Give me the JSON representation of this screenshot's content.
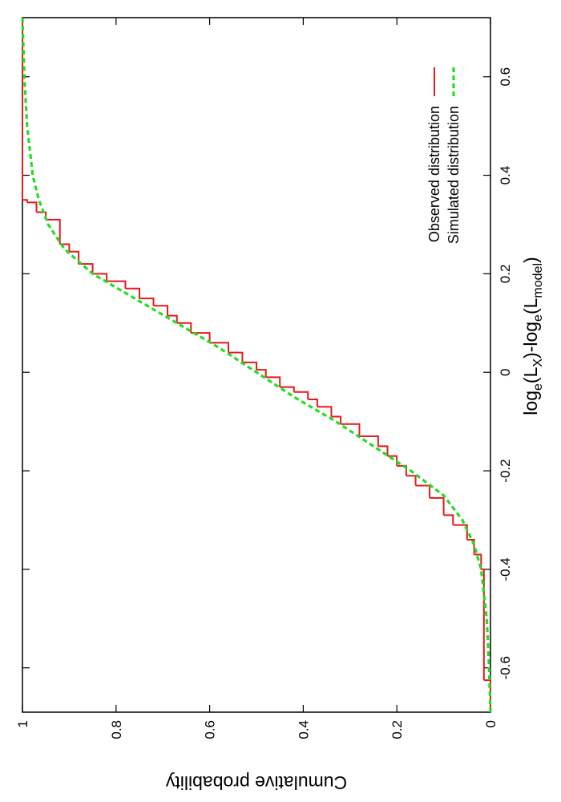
{
  "chart_data": {
    "type": "line",
    "ylabel": "Cumulative probability",
    "xlabel_parts": [
      "log",
      "e",
      "(L",
      "X",
      ")-log",
      "e",
      "(L",
      "model",
      ")"
    ],
    "xlim": [
      -0.69,
      0.72
    ],
    "ylim": [
      0,
      1
    ],
    "xticks": [
      -0.6,
      -0.4,
      -0.2,
      0,
      0.2,
      0.4,
      0.6
    ],
    "yticks": [
      0,
      0.2,
      0.4,
      0.6,
      0.8,
      1
    ],
    "legend": "bottom-right",
    "series": [
      {
        "name": "Observed distribution",
        "color": "#e41a1c",
        "style": "steps",
        "x": [
          -0.69,
          -0.625,
          -0.4,
          -0.37,
          -0.34,
          -0.31,
          -0.29,
          -0.255,
          -0.23,
          -0.21,
          -0.19,
          -0.17,
          -0.15,
          -0.13,
          -0.105,
          -0.09,
          -0.07,
          -0.055,
          -0.04,
          -0.03,
          -0.01,
          0.005,
          0.02,
          0.04,
          0.06,
          0.08,
          0.1,
          0.115,
          0.135,
          0.15,
          0.17,
          0.185,
          0.2,
          0.22,
          0.245,
          0.26,
          0.31,
          0.325,
          0.345,
          0.35,
          0.72
        ],
        "values": [
          0,
          0.014,
          0.02,
          0.035,
          0.05,
          0.08,
          0.1,
          0.13,
          0.16,
          0.18,
          0.2,
          0.22,
          0.24,
          0.28,
          0.32,
          0.34,
          0.37,
          0.39,
          0.42,
          0.45,
          0.48,
          0.5,
          0.53,
          0.56,
          0.6,
          0.64,
          0.67,
          0.69,
          0.72,
          0.75,
          0.78,
          0.82,
          0.85,
          0.88,
          0.9,
          0.92,
          0.95,
          0.97,
          0.99,
          1,
          1
        ]
      },
      {
        "name": "Simulated distribution",
        "color": "#22dd22",
        "style": "dashed",
        "x": [
          -0.69,
          -0.6,
          -0.5,
          -0.4,
          -0.35,
          -0.3,
          -0.25,
          -0.2,
          -0.15,
          -0.1,
          -0.05,
          0,
          0.05,
          0.1,
          0.15,
          0.2,
          0.25,
          0.3,
          0.35,
          0.4,
          0.5,
          0.6,
          0.72
        ],
        "values": [
          0,
          0.003,
          0.008,
          0.02,
          0.035,
          0.06,
          0.1,
          0.17,
          0.25,
          0.33,
          0.42,
          0.5,
          0.58,
          0.67,
          0.76,
          0.85,
          0.91,
          0.945,
          0.965,
          0.978,
          0.99,
          0.996,
          1
        ]
      }
    ]
  }
}
